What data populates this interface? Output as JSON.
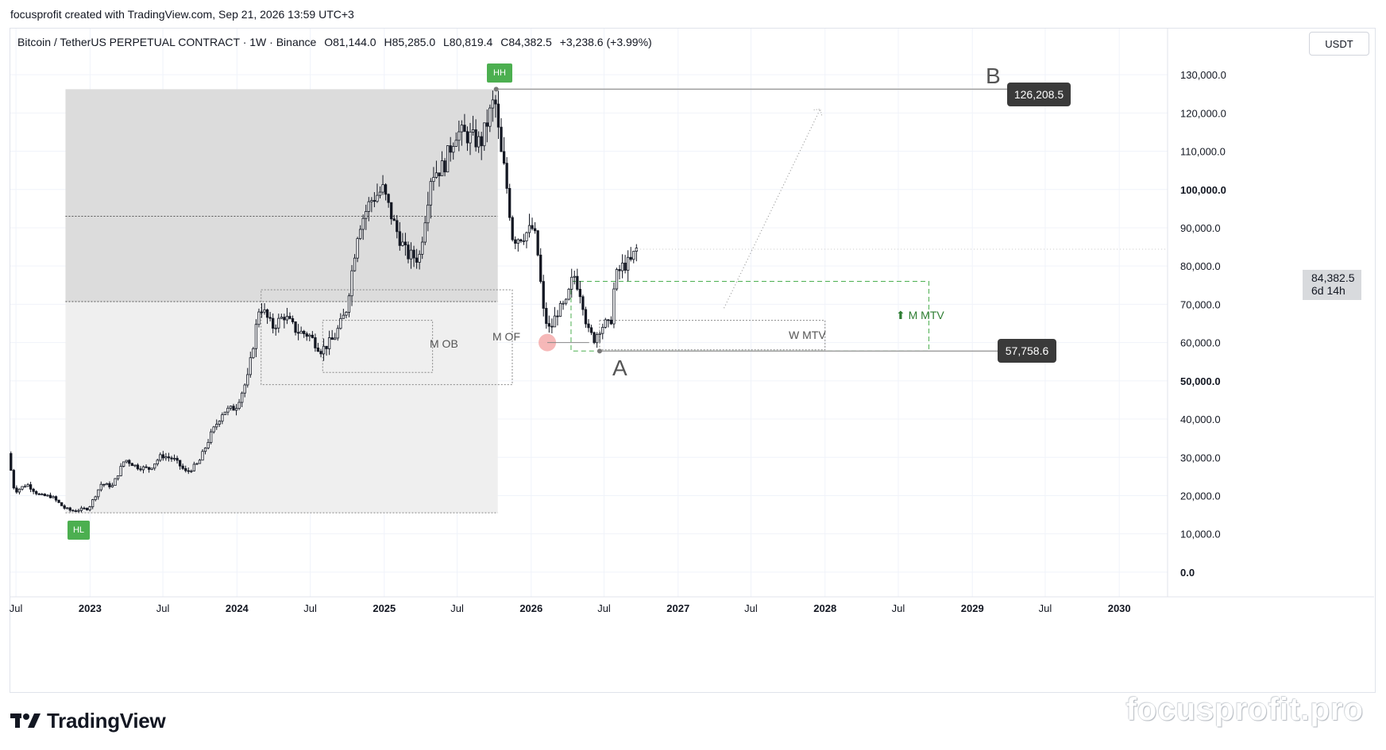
{
  "header": {
    "text": "focusprofit created with TradingView.com, Sep 21, 2026 13:59 UTC+3"
  },
  "legend": {
    "symbol": "Bitcoin / TetherUS PERPETUAL CONTRACT · 1W · Binance",
    "open_label": "O",
    "open": "81,144.0",
    "high_label": "H",
    "high": "85,285.0",
    "low_label": "L",
    "low": "80,819.4",
    "close_label": "C",
    "close": "84,382.5",
    "change": "+3,238.6 (+3.99%)"
  },
  "currency_button": "USDT",
  "price_axis": {
    "current_price": "84,382.5",
    "countdown": "6d 14h"
  },
  "annotations": {
    "hh_badge": "HH",
    "hl_badge": "HL",
    "label_b": "B",
    "label_a": "A",
    "high_tag": "126,208.5",
    "low_tag": "57,758.6",
    "m_ob": "M OB",
    "m_of": "M OF",
    "w_mtv": "W MTV",
    "m_mtv": "⬆ M MTV"
  },
  "footer": {
    "brand": "TradingView",
    "watermark": "focusprofit.pro"
  },
  "colors": {
    "up": "#ffffff",
    "down": "#131722",
    "grid": "#f0f3fa",
    "zone_dark": "#dcdcdc",
    "zone_light": "#efefef",
    "badge_green": "#4caf50",
    "m_mtv_green": "#2e7d32",
    "tag_bg": "#3a3a3a"
  },
  "chart_data": {
    "type": "candlestick",
    "title": "Bitcoin / TetherUS PERPETUAL CONTRACT · 1W · Binance",
    "y_axis": {
      "ticks": [
        0,
        10000,
        20000,
        30000,
        40000,
        50000,
        60000,
        70000,
        80000,
        90000,
        100000,
        110000,
        120000,
        130000
      ],
      "tick_labels": [
        "0.0",
        "10,000.0",
        "20,000.0",
        "30,000.0",
        "40,000.0",
        "50,000.0",
        "60,000.0",
        "70,000.0",
        "80,000.0",
        "90,000.0",
        "100,000.0",
        "110,000.0",
        "120,000.0",
        "130,000.0"
      ],
      "bold_labels": [
        "0.0",
        "50,000.0",
        "100,000.0"
      ],
      "range": [
        -5000,
        135000
      ]
    },
    "x_axis": {
      "ticks": [
        "2022-07-01",
        "2023-01-01",
        "2023-07-01",
        "2024-01-01",
        "2024-07-01",
        "2025-01-01",
        "2025-07-01",
        "2026-01-01",
        "2026-07-01",
        "2027-01-01",
        "2027-07-01",
        "2028-01-01",
        "2028-07-01",
        "2029-01-01",
        "2029-07-01",
        "2030-01-01"
      ],
      "tick_labels": [
        "Jul",
        "2023",
        "Jul",
        "2024",
        "Jul",
        "2025",
        "Jul",
        "2026",
        "Jul",
        "2027",
        "Jul",
        "2028",
        "Jul",
        "2029",
        "Jul",
        "2030"
      ],
      "bold_labels": [
        "2023",
        "2024",
        "2025",
        "2026",
        "2027",
        "2028",
        "2029",
        "2030"
      ],
      "range": [
        "2022-06-15",
        "2030-05-01"
      ]
    },
    "price_path": [
      [
        "2022-06-15",
        31000
      ],
      [
        "2022-07-01",
        21000
      ],
      [
        "2022-08-01",
        23000
      ],
      [
        "2022-09-01",
        20000
      ],
      [
        "2022-10-01",
        19800
      ],
      [
        "2022-11-01",
        16800
      ],
      [
        "2022-11-20",
        16000
      ],
      [
        "2023-01-01",
        16700
      ],
      [
        "2023-02-01",
        23000
      ],
      [
        "2023-03-01",
        22500
      ],
      [
        "2023-04-01",
        29500
      ],
      [
        "2023-05-01",
        27500
      ],
      [
        "2023-06-01",
        27000
      ],
      [
        "2023-07-01",
        30500
      ],
      [
        "2023-08-01",
        29500
      ],
      [
        "2023-09-01",
        26000
      ],
      [
        "2023-10-01",
        28500
      ],
      [
        "2023-11-01",
        36000
      ],
      [
        "2023-12-01",
        42000
      ],
      [
        "2024-01-01",
        43000
      ],
      [
        "2024-02-01",
        51000
      ],
      [
        "2024-03-01",
        70000
      ],
      [
        "2024-04-01",
        64000
      ],
      [
        "2024-05-01",
        67000
      ],
      [
        "2024-06-01",
        63000
      ],
      [
        "2024-07-01",
        62000
      ],
      [
        "2024-08-01",
        58000
      ],
      [
        "2024-09-01",
        61000
      ],
      [
        "2024-10-01",
        68000
      ],
      [
        "2024-11-01",
        90000
      ],
      [
        "2024-12-01",
        97000
      ],
      [
        "2025-01-01",
        100000
      ],
      [
        "2025-02-01",
        90000
      ],
      [
        "2025-03-01",
        83000
      ],
      [
        "2025-04-01",
        82000
      ],
      [
        "2025-05-01",
        104000
      ],
      [
        "2025-06-01",
        106000
      ],
      [
        "2025-07-01",
        115000
      ],
      [
        "2025-08-01",
        114000
      ],
      [
        "2025-09-01",
        112000
      ],
      [
        "2025-10-06",
        124000
      ],
      [
        "2025-10-20",
        110000
      ],
      [
        "2025-11-01",
        104000
      ],
      [
        "2025-11-20",
        87000
      ],
      [
        "2025-12-15",
        88000
      ],
      [
        "2026-01-10",
        90000
      ],
      [
        "2026-01-20",
        84000
      ],
      [
        "2026-02-05",
        67000
      ],
      [
        "2026-02-20",
        63000
      ],
      [
        "2026-03-10",
        68000
      ],
      [
        "2026-04-01",
        70000
      ],
      [
        "2026-04-20",
        78000
      ],
      [
        "2026-05-10",
        72000
      ],
      [
        "2026-05-25",
        63000
      ],
      [
        "2026-06-10",
        61000
      ],
      [
        "2026-06-25",
        64000
      ],
      [
        "2026-07-10",
        65000
      ],
      [
        "2026-07-20",
        64000
      ],
      [
        "2026-08-01",
        77000
      ],
      [
        "2026-08-20",
        80000
      ],
      [
        "2026-09-10",
        81144
      ],
      [
        "2026-09-21",
        84382.5
      ]
    ],
    "levels": {
      "all_time_high": 126208.5,
      "swing_low": 57758.6,
      "current_close": 84382.5
    },
    "zones": [
      {
        "name": "range_upper",
        "from": "2022-11-01",
        "to": "2025-10-10",
        "top": 126208.5,
        "bottom": 70700,
        "mid": 93000
      },
      {
        "name": "range_lower",
        "from": "2022-11-01",
        "to": "2025-10-10",
        "top": 70700,
        "bottom": 15500
      },
      {
        "name": "M OB",
        "from": "2024-08-01",
        "to": "2025-05-01",
        "top": 65800,
        "bottom": 52200
      },
      {
        "name": "M OF",
        "from": "2024-03-01",
        "to": "2025-11-15",
        "top": 73800,
        "bottom": 49000
      },
      {
        "name": "W MTV",
        "from": "2026-06-20",
        "to": "2028-01-01",
        "top": 65800,
        "bottom": 58100
      },
      {
        "name": "M MTV",
        "from": "2026-04-10",
        "to": "2028-09-15",
        "top": 76000,
        "bottom": 57800
      }
    ],
    "projection": {
      "from": [
        "2027-04-25",
        69000
      ],
      "to": [
        "2027-12-20",
        121000
      ]
    }
  }
}
